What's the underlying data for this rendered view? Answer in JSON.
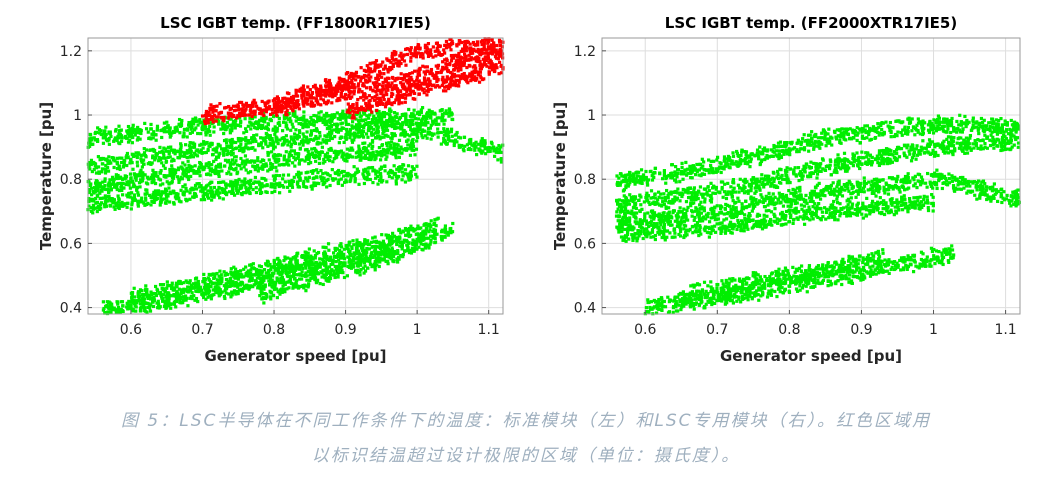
{
  "chart_data": [
    {
      "type": "scatter",
      "title": "LSC IGBT temp. (FF1800R17IE5)",
      "xlabel": "Generator speed [pu]",
      "ylabel": "Temperature [pu]",
      "xlim": [
        0.54,
        1.12
      ],
      "ylim": [
        0.38,
        1.24
      ],
      "xticks": [
        "0.6",
        "0.7",
        "0.8",
        "0.9",
        "1",
        "1.1"
      ],
      "yticks": [
        "0.4",
        "0.6",
        "0.8",
        "1",
        "1.2"
      ],
      "grid": true,
      "series": [
        {
          "color": "#00ee00",
          "band_centers": [
            [
              [
                0.54,
                0.93
              ],
              [
                0.7,
                0.965
              ],
              [
                0.85,
                0.985
              ],
              [
                1.05,
                0.995
              ]
            ],
            [
              [
                0.54,
                0.84
              ],
              [
                0.7,
                0.89
              ],
              [
                0.85,
                0.935
              ],
              [
                1.0,
                0.96
              ],
              [
                1.12,
                0.88
              ]
            ],
            [
              [
                0.54,
                0.77
              ],
              [
                0.7,
                0.83
              ],
              [
                0.85,
                0.87
              ],
              [
                1.0,
                0.9
              ]
            ],
            [
              [
                0.54,
                0.72
              ],
              [
                0.7,
                0.76
              ],
              [
                0.85,
                0.8
              ],
              [
                1.0,
                0.82
              ]
            ],
            [
              [
                0.56,
                0.39
              ],
              [
                0.7,
                0.44
              ],
              [
                0.85,
                0.52
              ],
              [
                1.0,
                0.6
              ],
              [
                1.05,
                0.64
              ]
            ],
            [
              [
                0.6,
                0.43
              ],
              [
                0.75,
                0.5
              ],
              [
                0.9,
                0.58
              ],
              [
                1.03,
                0.65
              ]
            ],
            [
              [
                0.78,
                0.44
              ],
              [
                0.9,
                0.52
              ],
              [
                0.98,
                0.57
              ]
            ]
          ]
        },
        {
          "color": "#ff0000",
          "band_centers": [
            [
              [
                0.8,
                1.02
              ],
              [
                0.9,
                1.07
              ],
              [
                1.0,
                1.12
              ],
              [
                1.12,
                1.2
              ]
            ],
            [
              [
                0.9,
                1.01
              ],
              [
                1.0,
                1.08
              ],
              [
                1.12,
                1.15
              ]
            ],
            [
              [
                0.7,
                1.0
              ],
              [
                0.8,
                1.03
              ],
              [
                0.9,
                1.1
              ],
              [
                1.0,
                1.2
              ],
              [
                1.12,
                1.22
              ]
            ]
          ]
        }
      ]
    },
    {
      "type": "scatter",
      "title": "LSC IGBT temp. (FF2000XTR17IE5)",
      "xlabel": "Generator speed [pu]",
      "ylabel": "Temperature [pu]",
      "xlim": [
        0.54,
        1.12
      ],
      "ylim": [
        0.38,
        1.24
      ],
      "xticks": [
        "0.6",
        "0.7",
        "0.8",
        "0.9",
        "1",
        "1.1"
      ],
      "yticks": [
        "0.4",
        "0.6",
        "0.8",
        "1",
        "1.2"
      ],
      "grid": true,
      "series": [
        {
          "color": "#00ee00",
          "band_centers": [
            [
              [
                0.56,
                0.79
              ],
              [
                0.7,
                0.84
              ],
              [
                0.85,
                0.93
              ],
              [
                1.0,
                0.97
              ],
              [
                1.12,
                0.96
              ]
            ],
            [
              [
                0.56,
                0.72
              ],
              [
                0.7,
                0.76
              ],
              [
                0.85,
                0.84
              ],
              [
                1.0,
                0.9
              ],
              [
                1.12,
                0.92
              ]
            ],
            [
              [
                0.56,
                0.67
              ],
              [
                0.7,
                0.7
              ],
              [
                0.85,
                0.76
              ],
              [
                1.0,
                0.8
              ],
              [
                1.12,
                0.74
              ]
            ],
            [
              [
                0.56,
                0.63
              ],
              [
                0.7,
                0.65
              ],
              [
                0.85,
                0.7
              ],
              [
                1.0,
                0.73
              ]
            ],
            [
              [
                0.6,
                0.4
              ],
              [
                0.75,
                0.45
              ],
              [
                0.9,
                0.51
              ],
              [
                1.03,
                0.57
              ]
            ],
            [
              [
                0.66,
                0.44
              ],
              [
                0.8,
                0.5
              ],
              [
                0.93,
                0.55
              ]
            ]
          ]
        }
      ]
    }
  ],
  "caption": {
    "line1": "图 5：LSC半导体在不同工作条件下的温度：标准模块（左）和LSC专用模块（右）。红色区域用",
    "line2": "以标识结温超过设计极限的区域（单位：摄氏度）。"
  }
}
